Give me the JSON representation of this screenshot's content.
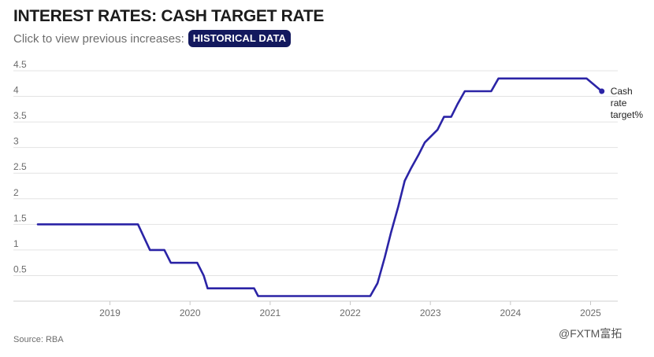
{
  "header": {
    "title": "INTEREST RATES: CASH TARGET RATE",
    "subtitle": "Click to view previous increases:",
    "button_label": "HISTORICAL DATA"
  },
  "footer": {
    "source": "Source: RBA",
    "watermark": "@FXTM富拓"
  },
  "colors": {
    "series": "#2b24a6",
    "button_bg": "#13195e",
    "grid": "#e3e3e3"
  },
  "chart_data": {
    "type": "line",
    "title": "INTEREST RATES: CASH TARGET RATE",
    "xlabel": "",
    "ylabel": "",
    "ylim": [
      0,
      4.5
    ],
    "xlim": [
      2018.1,
      2025.3
    ],
    "grid": "horizontal",
    "y_ticks": [
      "0.5",
      "1",
      "1.5",
      "2",
      "2.5",
      "3",
      "3.5",
      "4",
      "4.5"
    ],
    "x_ticks": [
      "2019",
      "2020",
      "2021",
      "2022",
      "2023",
      "2024",
      "2025"
    ],
    "series": [
      {
        "name": "Cash rate target%",
        "points": [
          [
            2018.1,
            1.5
          ],
          [
            2019.35,
            1.5
          ],
          [
            2019.5,
            1.0
          ],
          [
            2019.68,
            1.0
          ],
          [
            2019.76,
            0.75
          ],
          [
            2020.09,
            0.75
          ],
          [
            2020.17,
            0.5
          ],
          [
            2020.22,
            0.25
          ],
          [
            2020.8,
            0.25
          ],
          [
            2020.85,
            0.1
          ],
          [
            2022.25,
            0.1
          ],
          [
            2022.34,
            0.35
          ],
          [
            2022.43,
            0.85
          ],
          [
            2022.51,
            1.35
          ],
          [
            2022.6,
            1.85
          ],
          [
            2022.68,
            2.35
          ],
          [
            2022.76,
            2.6
          ],
          [
            2022.85,
            2.85
          ],
          [
            2022.93,
            3.1
          ],
          [
            2023.09,
            3.35
          ],
          [
            2023.17,
            3.6
          ],
          [
            2023.26,
            3.6
          ],
          [
            2023.34,
            3.85
          ],
          [
            2023.43,
            4.1
          ],
          [
            2023.76,
            4.1
          ],
          [
            2023.85,
            4.35
          ],
          [
            2024.95,
            4.35
          ],
          [
            2025.14,
            4.1
          ]
        ]
      }
    ],
    "series_label": [
      "Cash",
      "rate",
      "target%"
    ]
  }
}
